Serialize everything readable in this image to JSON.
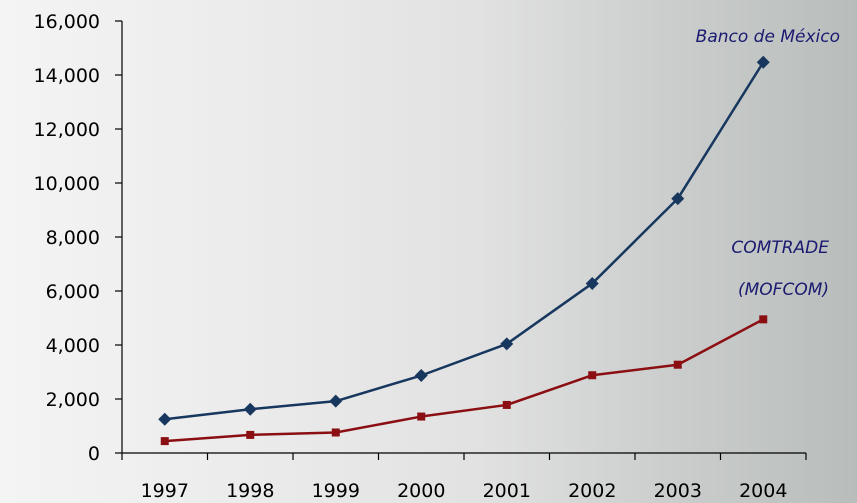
{
  "chart_data": {
    "type": "line",
    "categories": [
      "1997",
      "1998",
      "1999",
      "2000",
      "2001",
      "2002",
      "2003",
      "2004"
    ],
    "series": [
      {
        "name": "Banco de México",
        "color": "#17375e",
        "marker": "diamond",
        "values": [
          1250,
          1620,
          1920,
          2870,
          4040,
          6280,
          9420,
          14470
        ]
      },
      {
        "name": "COMTRADE (MOFCOM)",
        "color": "#8b0f12",
        "marker": "square",
        "values": [
          440,
          670,
          760,
          1350,
          1780,
          2880,
          3270,
          4950
        ]
      }
    ],
    "y_ticks": [
      "0",
      "2,000",
      "4,000",
      "6,000",
      "8,000",
      "10,000",
      "12,000",
      "14,000",
      "16,000"
    ],
    "ylim": [
      0,
      16000
    ],
    "grid": false,
    "series_labels": {
      "banco": "Banco de México",
      "comtrade_line1": "COMTRADE",
      "comtrade_line2": "(MOFCOM)"
    }
  }
}
